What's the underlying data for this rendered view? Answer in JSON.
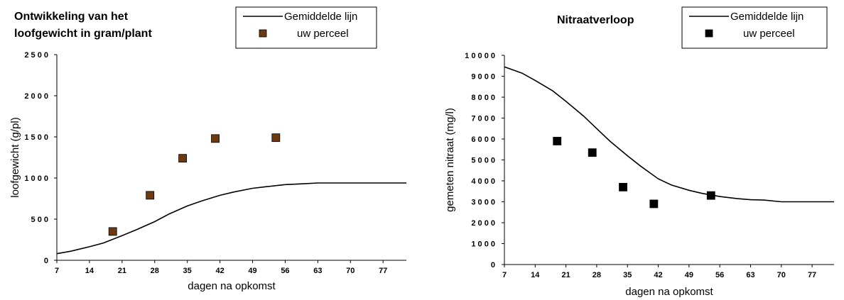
{
  "chart_data": [
    {
      "type": "line",
      "title": "Ontwikkeling van het loofgewicht in gram/plant",
      "title_lines": [
        "Ontwikkeling van het",
        "loofgewicht in gram/plant"
      ],
      "xlabel": "dagen na opkomst",
      "ylabel": "loofgewicht (g/pl)",
      "xlim": [
        7,
        82
      ],
      "ylim": [
        0,
        2500
      ],
      "x_ticks": [
        7,
        14,
        21,
        28,
        35,
        42,
        49,
        56,
        63,
        70,
        77
      ],
      "y_ticks": [
        0,
        500,
        1000,
        1500,
        2000,
        2500
      ],
      "y_tick_labels": [
        "0",
        "5 0 0",
        "1 0 0 0",
        "1 5 0 0",
        "2 0 0 0",
        "2 5 0 0"
      ],
      "grid": false,
      "legend_position": "top-right",
      "series": [
        {
          "name": "Gemiddelde lijn",
          "kind": "line",
          "color": "#000000",
          "x": [
            7,
            10,
            14,
            17,
            21,
            24,
            28,
            31,
            35,
            38,
            42,
            45,
            49,
            52,
            56,
            60,
            63,
            70,
            77,
            82
          ],
          "y": [
            80,
            110,
            165,
            210,
            300,
            370,
            470,
            560,
            660,
            720,
            790,
            830,
            875,
            895,
            920,
            930,
            940,
            940,
            940,
            940
          ]
        },
        {
          "name": "uw perceel",
          "kind": "scatter",
          "marker_color": "#6b3a10",
          "x": [
            19,
            27,
            34,
            41,
            54
          ],
          "y": [
            350,
            790,
            1240,
            1480,
            1490
          ]
        }
      ]
    },
    {
      "type": "line",
      "title": "Nitraatverloop",
      "title_lines": [
        "Nitraatverloop"
      ],
      "xlabel": "dagen na opkomst",
      "ylabel": "gemeten nitraat (mg/l)",
      "xlim": [
        7,
        82
      ],
      "ylim": [
        0,
        10000
      ],
      "x_ticks": [
        7,
        14,
        21,
        28,
        35,
        42,
        49,
        56,
        63,
        70,
        77
      ],
      "y_ticks": [
        0,
        1000,
        2000,
        3000,
        4000,
        5000,
        6000,
        7000,
        8000,
        9000,
        10000
      ],
      "y_tick_labels": [
        "0",
        "1 0 0 0",
        "2 0 0 0",
        "3 0 0 0",
        "4 0 0 0",
        "5 0 0 0",
        "6 0 0 0",
        "7 0 0 0",
        "8 0 0 0",
        "9 0 0 0",
        "1 0 0 0 0"
      ],
      "grid": false,
      "legend_position": "top-right",
      "series": [
        {
          "name": "Gemiddelde lijn",
          "kind": "line",
          "color": "#000000",
          "x": [
            7,
            11,
            14,
            18,
            21,
            25,
            28,
            31,
            35,
            38,
            42,
            45,
            49,
            52,
            56,
            60,
            63,
            66,
            70,
            77,
            82
          ],
          "y": [
            9450,
            9150,
            8800,
            8300,
            7800,
            7100,
            6500,
            5900,
            5200,
            4700,
            4100,
            3800,
            3550,
            3400,
            3250,
            3150,
            3100,
            3080,
            3000,
            3000,
            3000
          ]
        },
        {
          "name": "uw perceel",
          "kind": "scatter",
          "marker_color": "#000000",
          "x": [
            19,
            27,
            34,
            41,
            54
          ],
          "y": [
            5900,
            5350,
            3700,
            2900,
            3300
          ]
        }
      ]
    }
  ]
}
